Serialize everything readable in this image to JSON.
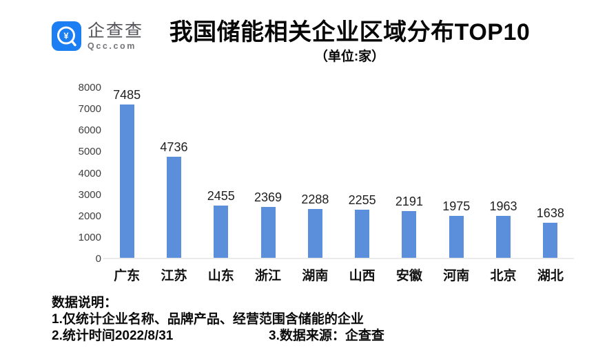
{
  "brand": {
    "name": "企查查",
    "domain": "Qcc.com",
    "logo_color": "#1b7ef2"
  },
  "header": {
    "title": "我国储能相关企业区域分布TOP10",
    "subtitle": "（单位:家）"
  },
  "chart_data": {
    "type": "bar",
    "title": "我国储能相关企业区域分布TOP10",
    "unit_label": "（单位:家）",
    "categories": [
      "广东",
      "江苏",
      "山东",
      "浙江",
      "湖南",
      "山西",
      "安徽",
      "河南",
      "北京",
      "湖北"
    ],
    "values": [
      7485,
      4736,
      2455,
      2369,
      2288,
      2255,
      2191,
      1975,
      1963,
      1638
    ],
    "xlabel": "",
    "ylabel": "",
    "ylim": [
      0,
      8000
    ],
    "ytick_step": 1000,
    "bar_color": "#5b8fdb",
    "grid": false,
    "legend": "none",
    "data_labels": true
  },
  "footer": {
    "heading": "数据说明：",
    "note1": "1.仅统计企业名称、品牌产品、经营范围含储能的企业",
    "note2": "2.统计时间2022/8/31",
    "note3": "3.数据来源：企查查"
  }
}
